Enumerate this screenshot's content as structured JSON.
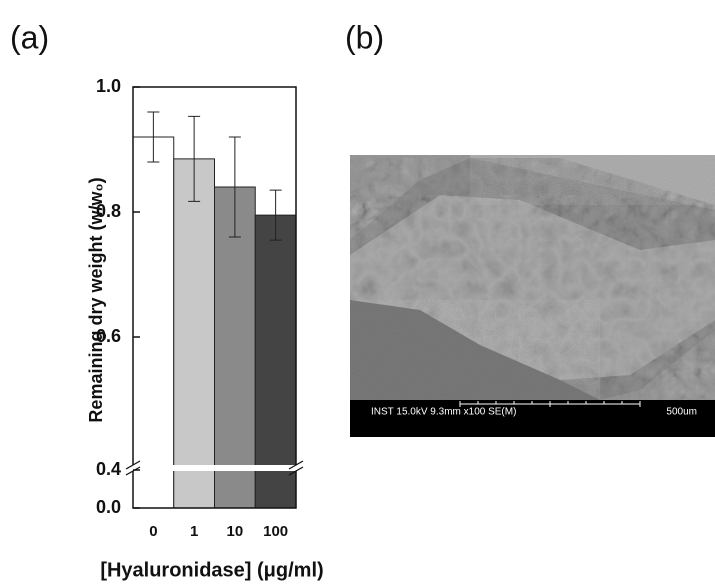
{
  "chart_data": {
    "type": "bar",
    "y_label": "Remaining dry weight (w/w₀)",
    "x_label": "[Hyaluronidase] (μg/ml)",
    "categories": [
      "0",
      "1",
      "10",
      "100"
    ],
    "values": [
      0.92,
      0.885,
      0.84,
      0.795
    ],
    "errors": [
      0.04,
      0.068,
      0.08,
      0.04
    ],
    "colors": [
      "#ffffff",
      "#c8c8c8",
      "#8a8a8a",
      "#444444"
    ],
    "ylim": [
      0,
      1.0
    ],
    "y_break": 0.4,
    "yticks": [
      {
        "value": 0,
        "label": "0.0"
      },
      0.4,
      0.6,
      0.8,
      {
        "value": 1.0,
        "label": "1.0"
      }
    ]
  },
  "panels": [
    "(a)",
    "(b)"
  ],
  "sem_image": {
    "info": "INST 15.0kV 9.3mm x100 SE(M)",
    "scale": "500um"
  }
}
